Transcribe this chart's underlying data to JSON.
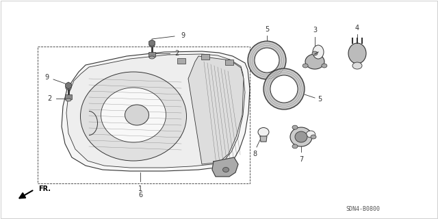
{
  "bg_color": "#ffffff",
  "line_color": "#333333",
  "diagram_code": "SDN4-B0800",
  "fs_label": 7.0,
  "fs_code": 6.0
}
